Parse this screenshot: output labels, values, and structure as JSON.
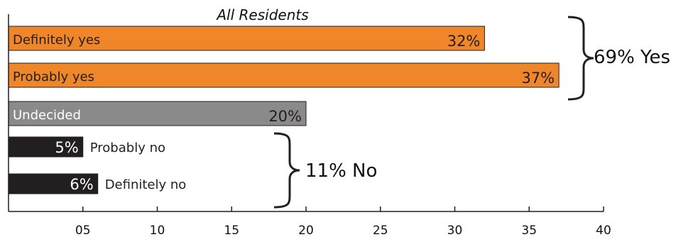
{
  "chart_data": {
    "type": "bar",
    "orientation": "horizontal",
    "title": "All Residents",
    "categories": [
      "Definitely yes",
      "Probably yes",
      "Undecided",
      "Probably no",
      "Definitely no"
    ],
    "values": [
      32,
      37,
      20,
      5,
      6
    ],
    "value_labels": [
      "32%",
      "37%",
      "20%",
      "5%",
      "6%"
    ],
    "bar_colors": [
      "#f0862a",
      "#f0862a",
      "#8a8a8a",
      "#231f20",
      "#231f20"
    ],
    "xlim": [
      0,
      40
    ],
    "x_ticks": [
      5,
      10,
      15,
      20,
      25,
      30,
      35,
      40
    ],
    "x_tick_labels": [
      "05",
      "10",
      "15",
      "20",
      "25",
      "30",
      "35",
      "40"
    ],
    "xlabel": "",
    "ylabel": "",
    "grid": false,
    "legend": false,
    "groups": [
      {
        "label": "69% Yes",
        "categories": [
          "Definitely yes",
          "Probably yes"
        ]
      },
      {
        "label": "11% No",
        "categories": [
          "Probably no",
          "Definitely no"
        ]
      }
    ]
  }
}
